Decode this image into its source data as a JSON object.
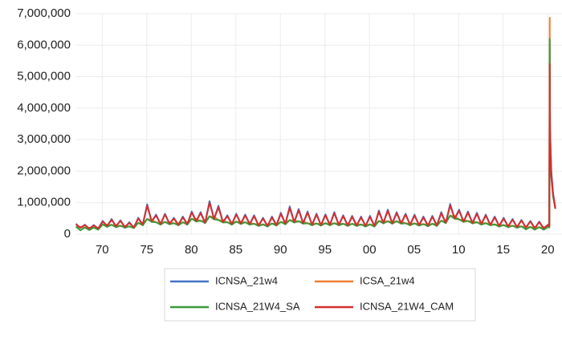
{
  "chart_data": {
    "type": "line",
    "x": [
      1967.05,
      1967.55,
      1968.05,
      1968.55,
      1969.05,
      1969.55,
      1970.05,
      1970.55,
      1971.05,
      1971.55,
      1972.05,
      1972.55,
      1973.05,
      1973.55,
      1974.05,
      1974.55,
      1975.05,
      1975.55,
      1976.05,
      1976.55,
      1977.05,
      1977.55,
      1978.05,
      1978.55,
      1979.05,
      1979.55,
      1980.05,
      1980.55,
      1981.05,
      1981.55,
      1982.05,
      1982.55,
      1983.05,
      1983.55,
      1984.05,
      1984.55,
      1985.05,
      1985.55,
      1986.05,
      1986.55,
      1987.05,
      1987.55,
      1988.05,
      1988.55,
      1989.05,
      1989.55,
      1990.05,
      1990.55,
      1991.05,
      1991.55,
      1992.05,
      1992.55,
      1993.05,
      1993.55,
      1994.05,
      1994.55,
      1995.05,
      1995.55,
      1996.05,
      1996.55,
      1997.05,
      1997.55,
      1998.05,
      1998.55,
      1999.05,
      1999.55,
      2000.05,
      2000.55,
      2001.05,
      2001.55,
      2002.05,
      2002.55,
      2003.05,
      2003.55,
      2004.05,
      2004.55,
      2005.05,
      2005.55,
      2006.05,
      2006.55,
      2007.05,
      2007.55,
      2008.05,
      2008.55,
      2009.05,
      2009.55,
      2010.05,
      2010.55,
      2011.05,
      2011.55,
      2012.05,
      2012.55,
      2013.05,
      2013.55,
      2014.05,
      2014.55,
      2015.05,
      2015.55,
      2016.05,
      2016.55,
      2017.05,
      2017.55,
      2018.05,
      2018.55,
      2019.05,
      2019.55,
      2020.05,
      2020.18,
      2020.22,
      2020.26,
      2020.4,
      2020.6,
      2020.85
    ],
    "series": [
      {
        "name": "ICNSA_21w4",
        "color": "#4472c4",
        "values": [
          330000,
          195000,
          300000,
          170000,
          290000,
          170000,
          420000,
          255000,
          480000,
          245000,
          440000,
          220000,
          380000,
          205000,
          520000,
          300000,
          950000,
          400000,
          620000,
          315000,
          650000,
          325000,
          520000,
          290000,
          560000,
          315000,
          720000,
          410000,
          700000,
          355000,
          1050000,
          475000,
          900000,
          375000,
          600000,
          315000,
          650000,
          330000,
          620000,
          315000,
          600000,
          270000,
          520000,
          255000,
          560000,
          280000,
          680000,
          325000,
          880000,
          375000,
          800000,
          340000,
          720000,
          290000,
          650000,
          280000,
          630000,
          290000,
          700000,
          290000,
          600000,
          270000,
          580000,
          270000,
          560000,
          255000,
          580000,
          255000,
          750000,
          350000,
          780000,
          340000,
          700000,
          340000,
          650000,
          290000,
          620000,
          280000,
          560000,
          265000,
          580000,
          270000,
          700000,
          355000,
          960000,
          495000,
          780000,
          390000,
          720000,
          350000,
          680000,
          315000,
          620000,
          290000,
          560000,
          255000,
          520000,
          240000,
          480000,
          220000,
          450000,
          205000,
          420000,
          185000,
          400000,
          180000,
          300000,
          250000,
          6015000,
          3400000,
          2000000,
          1300000,
          850000
        ]
      },
      {
        "name": "ICSA_21w4",
        "color": "#ed7d31",
        "values": [
          230000,
          230000,
          200000,
          200000,
          200000,
          200000,
          300000,
          300000,
          290000,
          290000,
          260000,
          260000,
          240000,
          240000,
          350000,
          350000,
          470000,
          470000,
          370000,
          370000,
          380000,
          380000,
          340000,
          340000,
          370000,
          370000,
          480000,
          480000,
          420000,
          420000,
          560000,
          560000,
          440000,
          440000,
          370000,
          370000,
          390000,
          390000,
          370000,
          370000,
          320000,
          320000,
          300000,
          300000,
          330000,
          330000,
          380000,
          380000,
          440000,
          440000,
          400000,
          400000,
          340000,
          340000,
          330000,
          330000,
          340000,
          340000,
          340000,
          340000,
          320000,
          320000,
          320000,
          320000,
          300000,
          300000,
          300000,
          300000,
          410000,
          410000,
          400000,
          400000,
          400000,
          400000,
          340000,
          340000,
          330000,
          330000,
          310000,
          310000,
          320000,
          320000,
          420000,
          420000,
          580000,
          580000,
          460000,
          460000,
          410000,
          410000,
          370000,
          370000,
          340000,
          340000,
          300000,
          300000,
          280000,
          280000,
          260000,
          260000,
          240000,
          240000,
          220000,
          220000,
          215000,
          215000,
          230000,
          215000,
          6870000,
          3300000,
          1850000,
          1250000,
          820000
        ]
      },
      {
        "name": "ICNSA_21W4_SA",
        "color": "#3a9a3a",
        "values": [
          240000,
          120000,
          210000,
          130000,
          210000,
          140000,
          310000,
          230000,
          300000,
          220000,
          270000,
          200000,
          250000,
          190000,
          360000,
          280000,
          480000,
          390000,
          380000,
          300000,
          390000,
          310000,
          350000,
          280000,
          380000,
          300000,
          490000,
          400000,
          430000,
          350000,
          570000,
          470000,
          450000,
          370000,
          380000,
          300000,
          400000,
          320000,
          380000,
          300000,
          330000,
          260000,
          310000,
          240000,
          340000,
          270000,
          390000,
          310000,
          450000,
          370000,
          410000,
          330000,
          350000,
          280000,
          340000,
          270000,
          350000,
          280000,
          350000,
          280000,
          330000,
          260000,
          330000,
          260000,
          310000,
          240000,
          310000,
          240000,
          420000,
          340000,
          410000,
          330000,
          410000,
          330000,
          350000,
          280000,
          340000,
          270000,
          320000,
          250000,
          330000,
          260000,
          430000,
          350000,
          590000,
          490000,
          470000,
          390000,
          420000,
          340000,
          380000,
          300000,
          350000,
          280000,
          310000,
          240000,
          290000,
          220000,
          270000,
          200000,
          250000,
          150000,
          230000,
          140000,
          225000,
          140000,
          230000,
          215000,
          6200000,
          3200000,
          1800000,
          1200000,
          800000
        ]
      },
      {
        "name": "ICNSA_21W4_CAM",
        "color": "#d32f2f",
        "values": [
          310000,
          205000,
          285000,
          180000,
          275000,
          180000,
          400000,
          265000,
          455000,
          255000,
          420000,
          230000,
          360000,
          215000,
          495000,
          310000,
          900000,
          410000,
          590000,
          325000,
          620000,
          335000,
          495000,
          300000,
          530000,
          325000,
          685000,
          420000,
          665000,
          365000,
          1000000,
          485000,
          855000,
          385000,
          570000,
          325000,
          620000,
          340000,
          590000,
          325000,
          570000,
          280000,
          495000,
          265000,
          530000,
          290000,
          645000,
          335000,
          835000,
          385000,
          760000,
          350000,
          685000,
          300000,
          620000,
          290000,
          600000,
          300000,
          665000,
          300000,
          570000,
          280000,
          550000,
          280000,
          530000,
          265000,
          550000,
          265000,
          710000,
          360000,
          740000,
          350000,
          665000,
          350000,
          620000,
          300000,
          590000,
          290000,
          530000,
          275000,
          550000,
          280000,
          665000,
          365000,
          910000,
          505000,
          740000,
          400000,
          685000,
          360000,
          645000,
          325000,
          590000,
          300000,
          530000,
          265000,
          495000,
          250000,
          455000,
          230000,
          430000,
          215000,
          400000,
          195000,
          380000,
          190000,
          300000,
          250000,
          5400000,
          3000000,
          1900000,
          1250000,
          820000
        ]
      }
    ],
    "xlim": [
      1967,
      2021.6
    ],
    "xticks": [
      {
        "value": 1970,
        "label": "70"
      },
      {
        "value": 1975,
        "label": "75"
      },
      {
        "value": 1980,
        "label": "80"
      },
      {
        "value": 1985,
        "label": "85"
      },
      {
        "value": 1990,
        "label": "90"
      },
      {
        "value": 1995,
        "label": "95"
      },
      {
        "value": 2000,
        "label": "00"
      },
      {
        "value": 2005,
        "label": "05"
      },
      {
        "value": 2010,
        "label": "10"
      },
      {
        "value": 2015,
        "label": "15"
      },
      {
        "value": 2020,
        "label": "20"
      }
    ],
    "ylim": [
      0,
      7000000
    ],
    "yticks": [
      0,
      {
        "value": 1000000,
        "label": "1,000,000"
      },
      {
        "value": 2000000,
        "label": "2,000,000"
      },
      {
        "value": 3000000,
        "label": "3,000,000"
      },
      {
        "value": 4000000,
        "label": "4,000,000"
      },
      {
        "value": 5000000,
        "label": "5,000,000"
      },
      {
        "value": 6000000,
        "label": "6,000,000"
      },
      {
        "value": 7000000,
        "label": "7,000,000"
      }
    ],
    "grid": true
  }
}
